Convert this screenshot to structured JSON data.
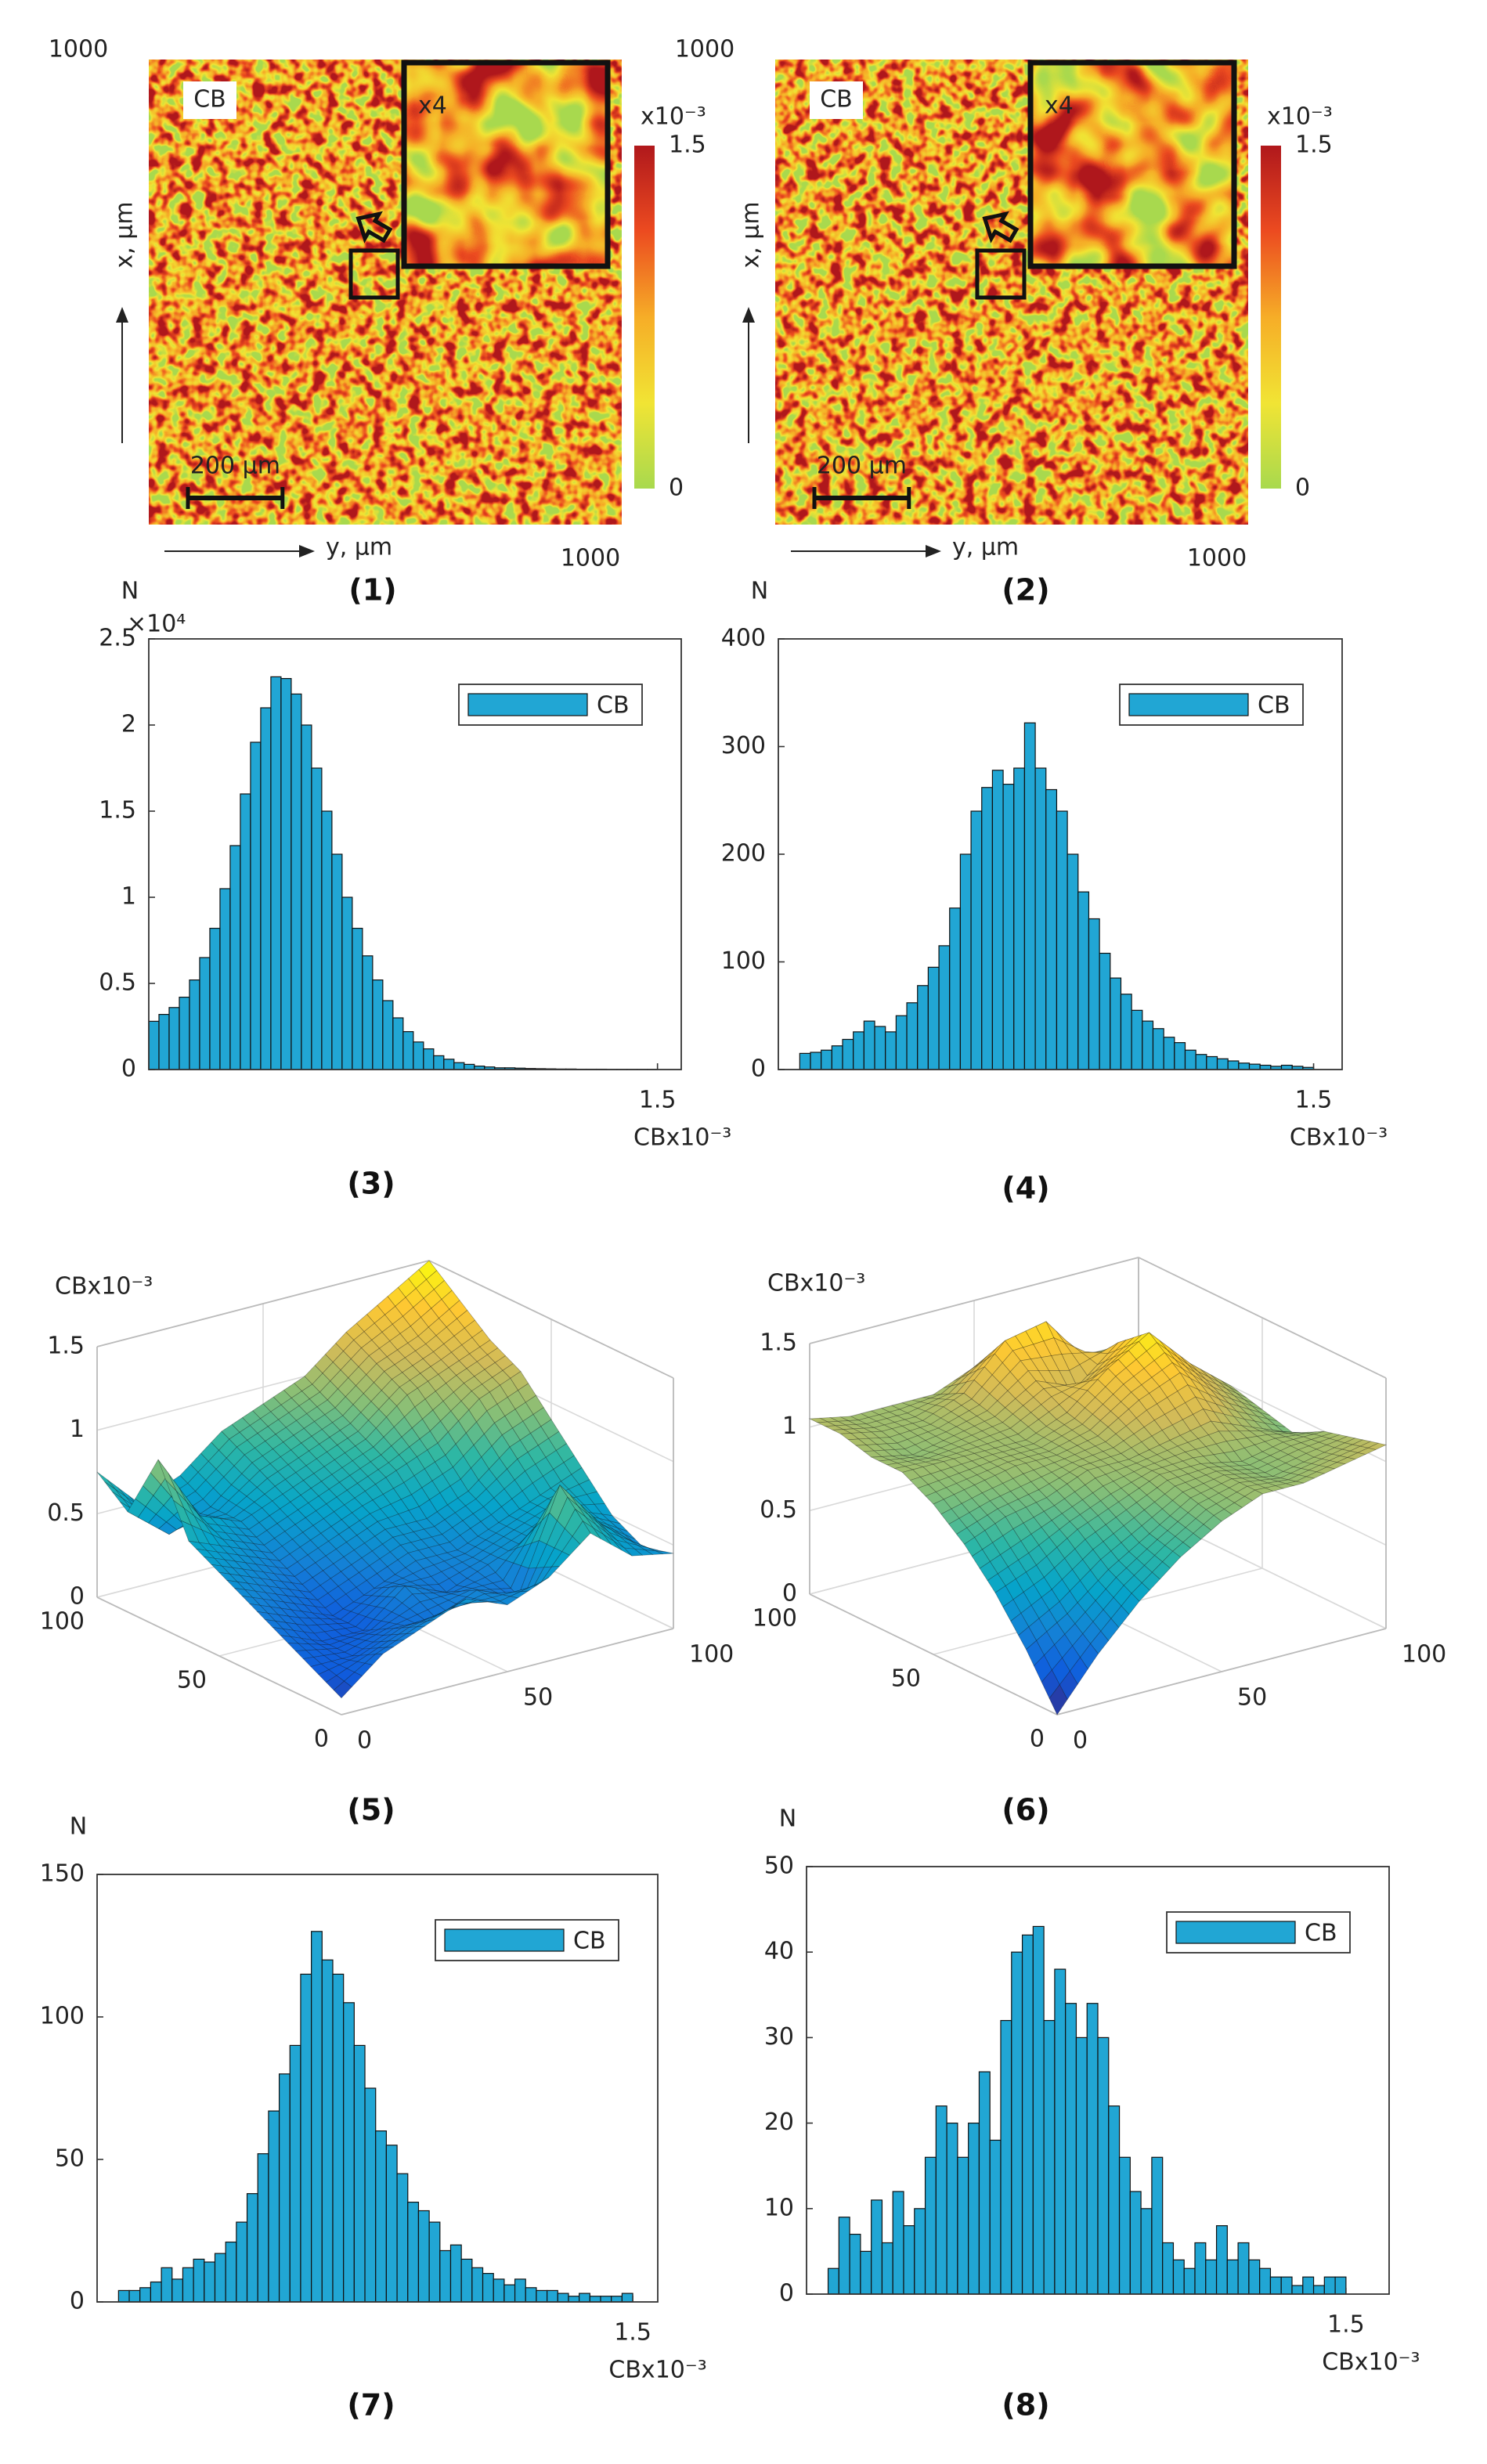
{
  "chart_data": [
    {
      "type": "heatmap",
      "label": "(1)",
      "legend_text": "CB",
      "inset_label": "x4",
      "scale_bar": {
        "value": 200,
        "label": "200 µm"
      },
      "xlabel": "y, µm",
      "ylabel": "x, µm",
      "xlim": [
        0,
        1000
      ],
      "xticks": [
        1000
      ],
      "ylim": [
        0,
        1000
      ],
      "yticks": [
        1000
      ],
      "clim": [
        0,
        1.5
      ],
      "cticks": [
        0,
        1.5
      ],
      "cmultiplier": "x10⁻³",
      "colormap": [
        "#a8d94e",
        "#f1e434",
        "#f6ad27",
        "#ec4b20",
        "#b0181c"
      ]
    },
    {
      "type": "heatmap",
      "label": "(2)",
      "legend_text": "CB",
      "inset_label": "x4",
      "scale_bar": {
        "value": 200,
        "label": "200 µm"
      },
      "xlabel": "y, µm",
      "ylabel": "x, µm",
      "xlim": [
        0,
        1000
      ],
      "xticks": [
        1000
      ],
      "ylim": [
        0,
        1000
      ],
      "yticks": [
        1000
      ],
      "clim": [
        0,
        1.5
      ],
      "cticks": [
        0,
        1.5
      ],
      "cmultiplier": "x10⁻³",
      "colormap": [
        "#a8d94e",
        "#f1e434",
        "#f6ad27",
        "#ec4b20",
        "#b0181c"
      ]
    },
    {
      "type": "histogram",
      "label": "(3)",
      "ylabel": "N",
      "ymultiplier": "×10⁴",
      "xlabel": "CBx10⁻³",
      "legend": "upper right",
      "bins": [
        0,
        0.03,
        0.06,
        0.09,
        0.12,
        0.15,
        0.18,
        0.21,
        0.24,
        0.27,
        0.3,
        0.33,
        0.36,
        0.39,
        0.42,
        0.45,
        0.48,
        0.51,
        0.54,
        0.57,
        0.6,
        0.63,
        0.66,
        0.69,
        0.72,
        0.75,
        0.78,
        0.81,
        0.84,
        0.87,
        0.9,
        0.93,
        0.96,
        0.99,
        1.02,
        1.05,
        1.08,
        1.11,
        1.14,
        1.17,
        1.2,
        1.23,
        1.26,
        1.29,
        1.32,
        1.35,
        1.38,
        1.41,
        1.44,
        1.47,
        1.5
      ],
      "series": [
        {
          "name": "CB",
          "color": "#21a6d4",
          "values": [
            0.28,
            0.32,
            0.36,
            0.42,
            0.52,
            0.65,
            0.82,
            1.05,
            1.3,
            1.6,
            1.9,
            2.1,
            2.28,
            2.27,
            2.18,
            2.0,
            1.75,
            1.5,
            1.25,
            1.0,
            0.82,
            0.66,
            0.52,
            0.4,
            0.3,
            0.22,
            0.16,
            0.12,
            0.08,
            0.06,
            0.04,
            0.03,
            0.02,
            0.015,
            0.01,
            0.01,
            0.008,
            0.006,
            0.005,
            0.004,
            0.003,
            0.003,
            0.002,
            0.002,
            0.002,
            0.001,
            0.001,
            0.001,
            0.001,
            0.001
          ]
        }
      ],
      "xlim": [
        0,
        1.57
      ],
      "xticks": [
        1.5
      ],
      "ylim": [
        0,
        2.5
      ],
      "yticks": [
        0,
        0.5,
        1,
        1.5,
        2,
        2.5
      ]
    },
    {
      "type": "histogram",
      "label": "(4)",
      "ylabel": "N",
      "xlabel": "CBx10⁻³",
      "legend": "upper right",
      "bins": [
        0.06,
        0.09,
        0.12,
        0.15,
        0.18,
        0.21,
        0.24,
        0.27,
        0.3,
        0.33,
        0.36,
        0.39,
        0.42,
        0.45,
        0.48,
        0.51,
        0.54,
        0.57,
        0.6,
        0.63,
        0.66,
        0.69,
        0.72,
        0.75,
        0.78,
        0.81,
        0.84,
        0.87,
        0.9,
        0.93,
        0.96,
        0.99,
        1.02,
        1.05,
        1.08,
        1.11,
        1.14,
        1.17,
        1.2,
        1.23,
        1.26,
        1.29,
        1.32,
        1.35,
        1.38,
        1.41,
        1.44,
        1.47,
        1.5
      ],
      "series": [
        {
          "name": "CB",
          "color": "#21a6d4",
          "values": [
            15,
            16,
            18,
            22,
            28,
            35,
            45,
            40,
            35,
            50,
            62,
            78,
            95,
            115,
            150,
            200,
            240,
            262,
            278,
            265,
            280,
            322,
            280,
            260,
            240,
            200,
            165,
            140,
            108,
            85,
            70,
            55,
            45,
            38,
            30,
            25,
            18,
            14,
            12,
            10,
            8,
            6,
            5,
            4,
            3,
            4,
            3,
            2
          ]
        }
      ],
      "xlim": [
        0,
        1.58
      ],
      "xticks": [
        1.5
      ],
      "ylim": [
        0,
        400
      ],
      "yticks": [
        0,
        100,
        200,
        300,
        400
      ]
    },
    {
      "type": "surface",
      "label": "(5)",
      "zlabel": "CBx10⁻³",
      "grid": true,
      "x": [
        0,
        12.5,
        25,
        37.5,
        50,
        62.5,
        75,
        87.5,
        100
      ],
      "y": [
        0,
        12.5,
        25,
        37.5,
        50,
        62.5,
        75,
        87.5,
        100
      ],
      "z": [
        [
          0.1,
          0.3,
          0.4,
          0.5,
          0.4,
          0.5,
          0.7,
          0.5,
          0.45
        ],
        [
          0.2,
          0.2,
          0.3,
          0.3,
          0.4,
          0.3,
          0.9,
          0.6,
          0.4
        ],
        [
          0.3,
          0.2,
          0.2,
          0.4,
          0.3,
          0.4,
          0.5,
          0.6,
          0.5
        ],
        [
          0.4,
          0.3,
          0.2,
          0.3,
          0.4,
          0.4,
          0.5,
          0.6,
          0.7
        ],
        [
          0.5,
          0.4,
          0.3,
          0.4,
          0.5,
          0.5,
          0.6,
          0.8,
          0.9
        ],
        [
          0.6,
          0.5,
          0.4,
          0.5,
          0.6,
          0.7,
          0.8,
          1.0,
          1.1
        ],
        [
          1.0,
          0.6,
          0.5,
          0.6,
          0.7,
          0.8,
          1.0,
          1.1,
          1.2
        ],
        [
          0.6,
          0.4,
          0.5,
          0.7,
          0.8,
          0.9,
          1.1,
          1.2,
          1.35
        ],
        [
          0.75,
          0.5,
          0.6,
          0.8,
          0.9,
          1.0,
          1.2,
          1.35,
          1.5
        ]
      ],
      "xlim": [
        0,
        100
      ],
      "xticks": [
        0,
        50,
        100
      ],
      "ylim": [
        0,
        100
      ],
      "yticks": [
        0,
        50,
        100
      ],
      "zlim": [
        0,
        1.5
      ],
      "zticks": [
        0,
        0.5,
        1,
        1.5
      ],
      "colormap": [
        "#352a87",
        "#0f5cdd",
        "#1481d6",
        "#06a4ca",
        "#2eb7a4",
        "#87bf77",
        "#d1bb59",
        "#fec832",
        "#f9fb0e"
      ]
    },
    {
      "type": "surface",
      "label": "(6)",
      "zlabel": "CBx10⁻³",
      "grid": true,
      "x": [
        0,
        12.5,
        25,
        37.5,
        50,
        62.5,
        75,
        87.5,
        100
      ],
      "y": [
        0,
        12.5,
        25,
        37.5,
        50,
        62.5,
        75,
        87.5,
        100
      ],
      "z": [
        [
          0.0,
          0.3,
          0.55,
          0.75,
          0.9,
          1.0,
          1.0,
          1.05,
          1.1
        ],
        [
          0.3,
          0.45,
          0.65,
          0.8,
          0.95,
          1.0,
          0.95,
          1.0,
          1.05
        ],
        [
          0.55,
          0.65,
          0.8,
          0.9,
          1.0,
          1.0,
          0.95,
          1.0,
          1.0
        ],
        [
          0.75,
          0.85,
          0.9,
          1.0,
          1.0,
          1.05,
          1.1,
          1.0,
          0.9
        ],
        [
          0.9,
          0.95,
          1.0,
          1.0,
          1.05,
          1.2,
          1.3,
          1.1,
          0.95
        ],
        [
          1.0,
          1.0,
          1.0,
          1.0,
          1.1,
          1.3,
          1.45,
          1.2,
          1.0
        ],
        [
          1.0,
          0.95,
          1.0,
          1.05,
          1.2,
          1.1,
          1.3,
          1.1,
          1.0
        ],
        [
          1.05,
          1.0,
          1.0,
          1.1,
          1.35,
          1.4,
          1.1,
          1.0,
          1.0
        ],
        [
          1.05,
          1.0,
          1.0,
          1.0,
          1.1,
          1.2,
          1.0,
          1.0,
          1.0
        ]
      ],
      "xlim": [
        0,
        100
      ],
      "xticks": [
        0,
        50,
        100
      ],
      "ylim": [
        0,
        100
      ],
      "yticks": [
        0,
        50,
        100
      ],
      "zlim": [
        0,
        1.5
      ],
      "zticks": [
        0,
        0.5,
        1,
        1.5
      ],
      "colormap": [
        "#352a87",
        "#0f5cdd",
        "#1481d6",
        "#06a4ca",
        "#2eb7a4",
        "#87bf77",
        "#d1bb59",
        "#fec832",
        "#f9fb0e"
      ]
    },
    {
      "type": "histogram",
      "label": "(7)",
      "ylabel": "N",
      "xlabel": "CBx10⁻³",
      "legend": "upper right",
      "bins": [
        0.06,
        0.09,
        0.12,
        0.15,
        0.18,
        0.21,
        0.24,
        0.27,
        0.3,
        0.33,
        0.36,
        0.39,
        0.42,
        0.45,
        0.48,
        0.51,
        0.54,
        0.57,
        0.6,
        0.63,
        0.66,
        0.69,
        0.72,
        0.75,
        0.78,
        0.81,
        0.84,
        0.87,
        0.9,
        0.93,
        0.96,
        0.99,
        1.02,
        1.05,
        1.08,
        1.11,
        1.14,
        1.17,
        1.2,
        1.23,
        1.26,
        1.29,
        1.32,
        1.35,
        1.38,
        1.41,
        1.44,
        1.47,
        1.5
      ],
      "series": [
        {
          "name": "CB",
          "color": "#21a6d4",
          "values": [
            4,
            4,
            5,
            7,
            12,
            8,
            12,
            15,
            14,
            17,
            21,
            28,
            38,
            52,
            67,
            80,
            90,
            115,
            130,
            120,
            115,
            105,
            90,
            75,
            60,
            55,
            45,
            35,
            32,
            28,
            18,
            20,
            15,
            12,
            10,
            8,
            6,
            8,
            5,
            4,
            4,
            3,
            2,
            3,
            2,
            2,
            2,
            3
          ]
        }
      ],
      "xlim": [
        0,
        1.57
      ],
      "xticks": [
        1.5
      ],
      "ylim": [
        0,
        150
      ],
      "yticks": [
        0,
        50,
        100,
        150
      ]
    },
    {
      "type": "histogram",
      "label": "(8)",
      "ylabel": "N",
      "xlabel": "CBx10⁻³",
      "legend": "upper right",
      "bins": [
        0.06,
        0.09,
        0.12,
        0.15,
        0.18,
        0.21,
        0.24,
        0.27,
        0.3,
        0.33,
        0.36,
        0.39,
        0.42,
        0.45,
        0.48,
        0.51,
        0.54,
        0.57,
        0.6,
        0.63,
        0.66,
        0.69,
        0.72,
        0.75,
        0.78,
        0.81,
        0.84,
        0.87,
        0.9,
        0.93,
        0.96,
        0.99,
        1.02,
        1.05,
        1.08,
        1.11,
        1.14,
        1.17,
        1.2,
        1.23,
        1.26,
        1.29,
        1.32,
        1.35,
        1.38,
        1.41,
        1.44,
        1.47,
        1.5
      ],
      "series": [
        {
          "name": "CB",
          "color": "#21a6d4",
          "values": [
            3,
            9,
            7,
            5,
            11,
            6,
            12,
            8,
            10,
            16,
            22,
            20,
            16,
            20,
            26,
            18,
            32,
            40,
            42,
            43,
            32,
            38,
            34,
            30,
            34,
            30,
            22,
            16,
            12,
            10,
            16,
            6,
            4,
            3,
            6,
            4,
            8,
            4,
            6,
            4,
            3,
            2,
            2,
            1,
            2,
            1,
            2,
            2
          ]
        }
      ],
      "xlim": [
        0,
        1.62
      ],
      "xticks": [
        1.5
      ],
      "ylim": [
        0,
        50
      ],
      "yticks": [
        0,
        10,
        20,
        30,
        40,
        50
      ]
    }
  ]
}
